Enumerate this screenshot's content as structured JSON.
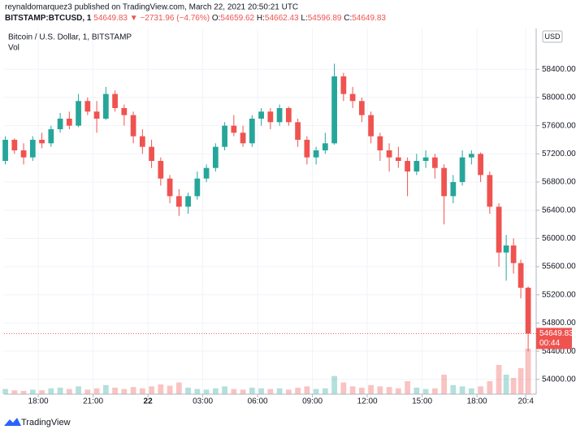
{
  "header": {
    "author_line": "reynaldomarquez3 published on TradingView.com, March 22, 2021 20:50:21 UTC"
  },
  "ticker": {
    "symbol": "BITSTAMP:BTCUSD, 1",
    "price": 54649.83,
    "change": "▼ −2731.96 (−4.76%)",
    "ohlc": [
      {
        "label": "O:",
        "value": 54659.62
      },
      {
        "label": "H:",
        "value": 54662.43
      },
      {
        "label": "L:",
        "value": 54596.89
      },
      {
        "label": "C:",
        "value": 54649.83
      }
    ]
  },
  "footer": {
    "brand": "TradingView"
  },
  "chart_data": {
    "type": "candlestick",
    "title": "Bitcoin / U.S. Dollar, 1, BITSTAMP",
    "volume_label": "Vol",
    "currency": "USD",
    "countdown": "00:44",
    "up_color": "#26a69a",
    "down_color": "#ef5350",
    "grid": true,
    "x": [
      16.2,
      16.7,
      17.2,
      17.7,
      18.2,
      18.7,
      19.2,
      19.7,
      20.2,
      20.7,
      21.2,
      21.7,
      22.2,
      22.7,
      23.2,
      23.7,
      24.2,
      24.7,
      25.2,
      25.7,
      26.2,
      26.7,
      27.2,
      27.7,
      28.2,
      28.7,
      29.2,
      29.7,
      30.2,
      30.7,
      31.2,
      31.7,
      32.2,
      32.7,
      33.2,
      33.7,
      34.2,
      34.7,
      35.2,
      35.7,
      36.2,
      36.7,
      37.2,
      37.7,
      38.2,
      38.7,
      39.2,
      39.7,
      40.2,
      40.7,
      41.2,
      41.7,
      42.2,
      42.7,
      43.2,
      43.6,
      44.0,
      44.4,
      44.8
    ],
    "open": [
      57100,
      57400,
      57250,
      57150,
      57400,
      57350,
      57550,
      57700,
      57600,
      57950,
      57800,
      57700,
      58050,
      57850,
      57750,
      57450,
      57300,
      57100,
      56850,
      56600,
      56450,
      56600,
      56850,
      57000,
      57300,
      57600,
      57500,
      57350,
      57700,
      57800,
      57650,
      57850,
      57650,
      57400,
      57150,
      57250,
      57350,
      58300,
      58050,
      57950,
      57750,
      57450,
      57250,
      57150,
      57100,
      56950,
      57100,
      57150,
      57000,
      56600,
      56800,
      57150,
      57200,
      56900,
      56450,
      55800,
      55900,
      55650,
      55300
    ],
    "high": [
      57450,
      57420,
      57350,
      57450,
      57500,
      57600,
      57780,
      57800,
      58050,
      58000,
      57950,
      58150,
      58100,
      57900,
      57800,
      57550,
      57400,
      57150,
      56900,
      56700,
      56650,
      56950,
      57050,
      57350,
      57650,
      57750,
      57600,
      57750,
      57850,
      57850,
      57900,
      57870,
      57700,
      57450,
      57300,
      57500,
      58480,
      58350,
      58150,
      58000,
      57800,
      57500,
      57350,
      57300,
      57150,
      57200,
      57250,
      57200,
      57050,
      56900,
      57250,
      57250,
      57220,
      56950,
      56500,
      56050,
      56000,
      55700,
      55320
    ],
    "low": [
      57050,
      57200,
      57050,
      57100,
      57280,
      57300,
      57500,
      57550,
      57580,
      57750,
      57500,
      57680,
      57800,
      57600,
      57350,
      57200,
      57000,
      56750,
      56500,
      56320,
      56350,
      56550,
      56800,
      56950,
      57250,
      57450,
      57300,
      57300,
      57600,
      57550,
      57600,
      57600,
      57300,
      57050,
      57050,
      57200,
      57330,
      57950,
      57850,
      57650,
      57350,
      57100,
      56950,
      57000,
      56600,
      56900,
      57000,
      56850,
      56200,
      56500,
      56750,
      57050,
      56800,
      56350,
      55600,
      55400,
      55500,
      55150,
      54400
    ],
    "close": [
      57400,
      57250,
      57150,
      57400,
      57350,
      57550,
      57700,
      57600,
      57950,
      57800,
      57700,
      58050,
      57850,
      57750,
      57450,
      57300,
      57100,
      56850,
      56600,
      56450,
      56600,
      56850,
      57000,
      57300,
      57600,
      57500,
      57350,
      57700,
      57800,
      57650,
      57850,
      57650,
      57400,
      57150,
      57250,
      57350,
      58300,
      58050,
      57950,
      57750,
      57450,
      57250,
      57150,
      57100,
      56950,
      57100,
      57150,
      57000,
      56600,
      56800,
      57150,
      57200,
      56900,
      56450,
      55800,
      55900,
      55650,
      55300,
      54649.83
    ],
    "volume": [
      8,
      6,
      5,
      7,
      6,
      9,
      10,
      8,
      12,
      7,
      9,
      14,
      10,
      8,
      11,
      9,
      12,
      15,
      13,
      18,
      10,
      8,
      7,
      9,
      12,
      8,
      7,
      10,
      9,
      8,
      9,
      7,
      10,
      12,
      8,
      9,
      28,
      18,
      12,
      10,
      14,
      12,
      11,
      9,
      20,
      10,
      8,
      9,
      30,
      14,
      12,
      9,
      12,
      20,
      45,
      30,
      25,
      40,
      70
    ],
    "volume_lim": [
      0,
      100
    ],
    "xlim": [
      16.13,
      45.24
    ],
    "ylim": [
      53790,
      58980
    ],
    "xticks": [
      {
        "value": 18,
        "label": "18:00"
      },
      {
        "value": 21,
        "label": "21:00"
      },
      {
        "value": 24,
        "label": "22",
        "bold": true
      },
      {
        "value": 27,
        "label": "03:00"
      },
      {
        "value": 30,
        "label": "06:00"
      },
      {
        "value": 33,
        "label": "09:00"
      },
      {
        "value": 36,
        "label": "12:00"
      },
      {
        "value": 39,
        "label": "15:00"
      },
      {
        "value": 42,
        "label": "18:00"
      },
      {
        "value": 44.67,
        "label": "20:4"
      }
    ],
    "yticks": [
      {
        "value": 54000,
        "label": "54000.00"
      },
      {
        "value": 54400,
        "label": "54400.00"
      },
      {
        "value": 54800,
        "label": "54800.00"
      },
      {
        "value": 55200,
        "label": "55200.00"
      },
      {
        "value": 55600,
        "label": "55600.00"
      },
      {
        "value": 56000,
        "label": "56000.00"
      },
      {
        "value": 56400,
        "label": "56400.00"
      },
      {
        "value": 56800,
        "label": "56800.00"
      },
      {
        "value": 57200,
        "label": "57200.00"
      },
      {
        "value": 57600,
        "label": "57600.00"
      },
      {
        "value": 58000,
        "label": "58000.00"
      },
      {
        "value": 58400,
        "label": "58400.00"
      }
    ]
  }
}
